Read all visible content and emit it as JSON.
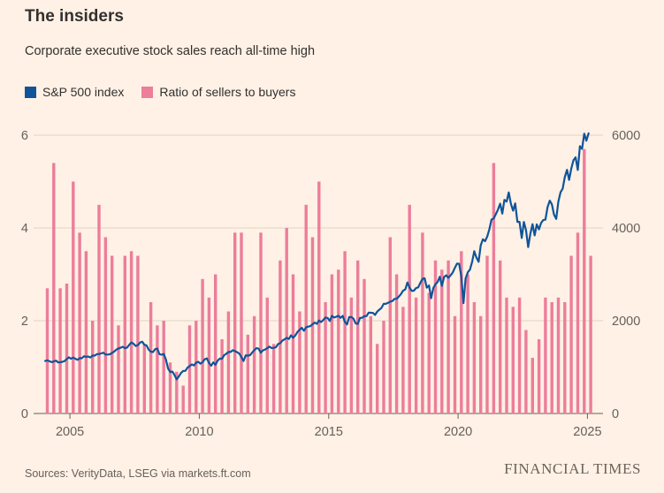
{
  "header": {
    "title": "The insiders",
    "subtitle": "Corporate executive stock sales reach all-time high"
  },
  "legend": {
    "items": [
      {
        "label": "S&P 500 index",
        "color": "#0f5499"
      },
      {
        "label": "Ratio of sellers to buyers",
        "color": "#ec7d9b"
      }
    ]
  },
  "footer": {
    "sources": "Sources: VerityData, LSEG via markets.ft.com",
    "brand": "FINANCIAL TIMES"
  },
  "colors": {
    "background": "#fff1e5",
    "line": "#0f5499",
    "bar": "#ec7d9b",
    "grid": "#e2d2c2",
    "baseline": "#66605c",
    "muted": "#66605c",
    "text": "#33302e"
  },
  "chart_data": {
    "type": "mixed",
    "title": "The insiders",
    "subtitle": "Corporate executive stock sales reach all-time high",
    "x_axis": {
      "min": 2003.8,
      "max": 2025.6,
      "ticks": [
        2005,
        2010,
        2015,
        2020,
        2025
      ]
    },
    "y_left": {
      "name": "Ratio of sellers to buyers",
      "min": 0,
      "max": 6,
      "ticks": [
        0,
        2,
        4,
        6
      ]
    },
    "y_right": {
      "name": "S&P 500 index",
      "min": 0,
      "max": 6000,
      "ticks": [
        0,
        2000,
        4000,
        6000
      ]
    },
    "grid": true,
    "legend_position": "top-left",
    "series": [
      {
        "name": "S&P 500 index",
        "type": "line",
        "axis": "right",
        "color": "#0f5499",
        "x_start": 2004,
        "x_step_months": 1,
        "values": [
          1131,
          1145,
          1126,
          1107,
          1121,
          1141,
          1102,
          1104,
          1115,
          1130,
          1174,
          1212,
          1181,
          1204,
          1181,
          1157,
          1192,
          1191,
          1234,
          1220,
          1229,
          1207,
          1249,
          1248,
          1280,
          1281,
          1295,
          1311,
          1270,
          1270,
          1277,
          1304,
          1336,
          1378,
          1401,
          1418,
          1438,
          1407,
          1421,
          1482,
          1531,
          1503,
          1455,
          1474,
          1527,
          1549,
          1481,
          1468,
          1379,
          1331,
          1323,
          1386,
          1400,
          1280,
          1267,
          1283,
          1166,
          969,
          896,
          903,
          826,
          735,
          798,
          873,
          919,
          919,
          987,
          1021,
          1057,
          1036,
          1096,
          1115,
          1074,
          1104,
          1169,
          1187,
          1089,
          1031,
          1102,
          1049,
          1141,
          1183,
          1181,
          1258,
          1286,
          1327,
          1326,
          1364,
          1345,
          1321,
          1292,
          1219,
          1131,
          1253,
          1247,
          1258,
          1312,
          1366,
          1408,
          1398,
          1310,
          1362,
          1379,
          1407,
          1441,
          1412,
          1416,
          1426,
          1498,
          1515,
          1569,
          1598,
          1631,
          1606,
          1686,
          1633,
          1682,
          1757,
          1806,
          1848,
          1783,
          1859,
          1872,
          1884,
          1924,
          1960,
          1931,
          2003,
          1972,
          2018,
          2068,
          2059,
          1995,
          2105,
          2068,
          2086,
          2107,
          2063,
          2104,
          1972,
          1920,
          2079,
          2080,
          2044,
          1940,
          1932,
          2060,
          2065,
          2097,
          2099,
          2174,
          2171,
          2168,
          2126,
          2199,
          2239,
          2279,
          2364,
          2363,
          2384,
          2412,
          2423,
          2470,
          2472,
          2519,
          2575,
          2648,
          2674,
          2824,
          2714,
          2641,
          2648,
          2705,
          2718,
          2816,
          2902,
          2914,
          2712,
          2760,
          2485,
          2704,
          2785,
          2834,
          2946,
          2752,
          2942,
          2980,
          2926,
          2977,
          3038,
          3141,
          3231,
          3226,
          2954,
          2380,
          2912,
          3044,
          3100,
          3271,
          3500,
          3363,
          3270,
          3622,
          3756,
          3714,
          3811,
          3973,
          4181,
          4204,
          4298,
          4395,
          4523,
          4308,
          4605,
          4567,
          4766,
          4516,
          4374,
          4530,
          4132,
          4132,
          3785,
          4130,
          3955,
          3586,
          3872,
          4080,
          3840,
          4077,
          3970,
          4109,
          4169,
          4180,
          4450,
          4589,
          4508,
          4288,
          4194,
          4568,
          4770,
          4846,
          5096,
          5254,
          5036,
          5278,
          5460,
          5522,
          5250,
          5762,
          5705,
          6032,
          5882,
          6040
        ]
      },
      {
        "name": "Ratio of sellers to buyers",
        "type": "bar",
        "axis": "left",
        "color": "#ec7d9b",
        "x_start": 2004,
        "x_step_months": 3,
        "values": [
          2.7,
          5.4,
          2.7,
          2.8,
          5.0,
          3.9,
          3.5,
          2.0,
          4.5,
          3.8,
          3.4,
          1.9,
          3.4,
          3.5,
          3.4,
          1.5,
          2.4,
          1.9,
          2.0,
          1.1,
          0.9,
          0.6,
          1.9,
          2.0,
          2.9,
          2.5,
          3.0,
          1.6,
          2.2,
          3.9,
          3.9,
          1.7,
          2.1,
          3.9,
          2.5,
          1.5,
          3.3,
          4.0,
          3.0,
          2.2,
          4.5,
          3.8,
          5.0,
          2.4,
          3.0,
          3.1,
          3.5,
          2.5,
          3.3,
          2.9,
          2.1,
          1.5,
          2.0,
          3.8,
          3.0,
          2.3,
          4.5,
          2.5,
          3.9,
          2.6,
          3.3,
          3.1,
          3.3,
          2.1,
          3.5,
          3.0,
          2.4,
          2.1,
          3.4,
          5.4,
          3.3,
          2.5,
          2.3,
          2.5,
          1.8,
          1.2,
          1.6,
          2.5,
          2.4,
          2.5,
          2.4,
          3.4,
          3.9,
          5.7,
          3.4
        ]
      }
    ]
  }
}
